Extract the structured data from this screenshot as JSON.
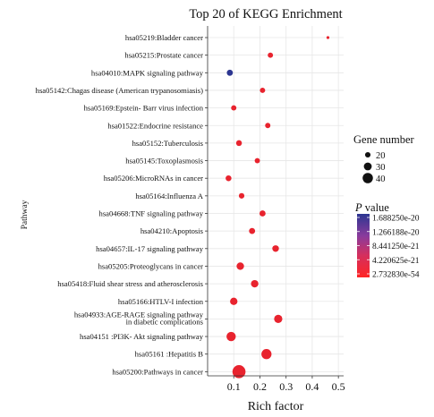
{
  "chart_data": {
    "type": "scatter",
    "title": "Top 20 of KEGG Enrichment",
    "xlabel": "Rich factor",
    "ylabel": "Pathway",
    "xlim": [
      0.0,
      0.52
    ],
    "xticks": [
      0.1,
      0.2,
      0.3,
      0.4,
      0.5
    ],
    "grid": true,
    "categories": [
      "hsa05219:Bladder cancer",
      "hsa05215:Prostate cancer",
      "hsa04010:MAPK signaling pathway",
      "hsa05142:Chagas disease (American trypanosomiasis)",
      "hsa05169:Epstein- Barr virus infection",
      "hsa01522:Endocrine resistance",
      "hsa05152:Tuberculosis",
      "hsa05145:Toxoplasmosis",
      "hsa05206:MicroRNAs in cancer",
      "hsa05164:Influenza A",
      "hsa04668:TNF signaling pathway",
      "hsa04210:Apoptosis",
      "hsa04657:IL-17 signaling pathway",
      "hsa05205:Proteoglycans in cancer",
      "hsa05418:Fluid shear stress and atherosclerosis",
      "hsa05166:HTLV-I infection",
      "hsa04933:AGE-RAGE signaling pathway in diabetic complications",
      "hsa04151 :PI3K- Akt signaling pathway",
      "hsa05161 :Hepatitis B",
      "hsa05200:Pathways in cancer"
    ],
    "points": [
      {
        "rich_factor": 0.46,
        "gene_number": 8,
        "color": "#e8232e"
      },
      {
        "rich_factor": 0.24,
        "gene_number": 17,
        "color": "#e8232e"
      },
      {
        "rich_factor": 0.085,
        "gene_number": 20,
        "color": "#2c3691"
      },
      {
        "rich_factor": 0.21,
        "gene_number": 17,
        "color": "#e8232e"
      },
      {
        "rich_factor": 0.1,
        "gene_number": 17,
        "color": "#e8232e"
      },
      {
        "rich_factor": 0.23,
        "gene_number": 17,
        "color": "#e8232e"
      },
      {
        "rich_factor": 0.12,
        "gene_number": 19,
        "color": "#e8232e"
      },
      {
        "rich_factor": 0.19,
        "gene_number": 17,
        "color": "#e8232e"
      },
      {
        "rich_factor": 0.08,
        "gene_number": 19,
        "color": "#e8232e"
      },
      {
        "rich_factor": 0.13,
        "gene_number": 18,
        "color": "#e8232e"
      },
      {
        "rich_factor": 0.21,
        "gene_number": 20,
        "color": "#e8232e"
      },
      {
        "rich_factor": 0.17,
        "gene_number": 20,
        "color": "#e8232e"
      },
      {
        "rich_factor": 0.26,
        "gene_number": 22,
        "color": "#e8232e"
      },
      {
        "rich_factor": 0.125,
        "gene_number": 25,
        "color": "#e8232e"
      },
      {
        "rich_factor": 0.18,
        "gene_number": 25,
        "color": "#e8232e"
      },
      {
        "rich_factor": 0.1,
        "gene_number": 25,
        "color": "#e8232e"
      },
      {
        "rich_factor": 0.27,
        "gene_number": 28,
        "color": "#e8232e"
      },
      {
        "rich_factor": 0.09,
        "gene_number": 32,
        "color": "#e8232e"
      },
      {
        "rich_factor": 0.225,
        "gene_number": 35,
        "color": "#e8232e"
      },
      {
        "rich_factor": 0.12,
        "gene_number": 46,
        "color": "#e8232e"
      }
    ],
    "size_legend": {
      "title": "Gene number",
      "labels": [
        "20",
        "30",
        "40"
      ],
      "values": [
        20,
        30,
        40
      ]
    },
    "color_legend": {
      "title_italic": "P",
      "title_rest": " value",
      "labels": [
        "1.688250e-20",
        "1.266188e-20",
        "8.441250e-21",
        "4.220625e-21",
        "2.732830e-54"
      ],
      "colors": [
        "#2c3691",
        "#7a3aa0",
        "#c22f7a",
        "#e3283f",
        "#ff2424"
      ],
      "legend_position": "right"
    }
  }
}
